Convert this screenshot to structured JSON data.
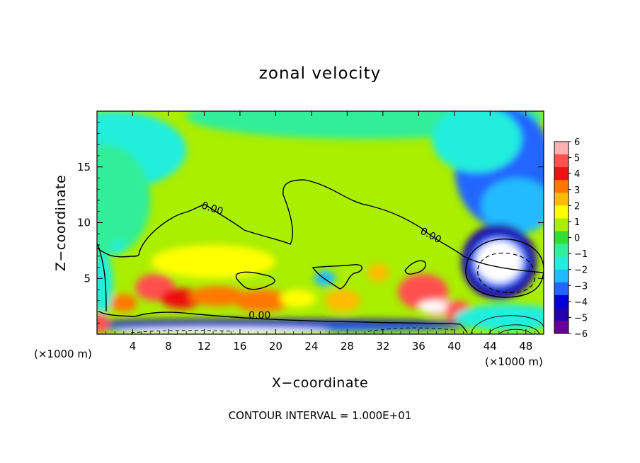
{
  "chart_data": {
    "type": "heatmap",
    "title": "zonal velocity",
    "xlabel": "X−coordinate",
    "ylabel": "Z−coordinate",
    "x_unit": "(×1000 m)",
    "z_unit": "(×1000 m)",
    "xlim": [
      0,
      50
    ],
    "ylim": [
      0,
      20
    ],
    "x_ticks": [
      4,
      8,
      12,
      16,
      20,
      24,
      28,
      32,
      36,
      40,
      44,
      48
    ],
    "y_ticks": [
      5,
      10,
      15
    ],
    "colorbar": {
      "ticks": [
        6,
        5,
        4,
        3,
        2,
        1,
        0,
        -1,
        -2,
        -3,
        -4,
        -5,
        -6
      ],
      "tick_labels": [
        "6",
        "5",
        "4",
        "3",
        "2",
        "1",
        "0",
        "−1",
        "−2",
        "−3",
        "−4",
        "−5",
        "−6"
      ],
      "colors": [
        "#ffb0b0",
        "#ff5050",
        "#ee1111",
        "#ff7700",
        "#ffbb00",
        "#ffff00",
        "#aaee00",
        "#33dd33",
        "#33ee99",
        "#22eedd",
        "#22bbff",
        "#2266ff",
        "#0000dd",
        "#2200aa",
        "#660099"
      ]
    },
    "contour_labels": [
      {
        "text": "0.00",
        "x": 12.8,
        "z": 11.0
      },
      {
        "text": "0.00",
        "x": 37.2,
        "z": 8.6
      },
      {
        "text": "0.00",
        "x": 18.2,
        "z": 1.4
      }
    ],
    "background_value": 0.5,
    "blobs": [
      {
        "x": 2,
        "z": 16.5,
        "rx": 8,
        "rz": 3.5,
        "v": -1.5
      },
      {
        "x": 1,
        "z": 12,
        "rx": 5,
        "rz": 5,
        "v": -1.0
      },
      {
        "x": 30,
        "z": 19.5,
        "rx": 20,
        "rz": 2,
        "v": -0.6
      },
      {
        "x": 45.5,
        "z": 15,
        "rx": 5.5,
        "rz": 5.5,
        "v": -2.8
      },
      {
        "x": 47,
        "z": 11.5,
        "rx": 4,
        "rz": 2.5,
        "v": -2.2
      },
      {
        "x": 42.5,
        "z": 17.5,
        "rx": 5,
        "rz": 3,
        "v": -1.6
      },
      {
        "x": 45,
        "z": 6.5,
        "rx": 4.2,
        "rz": 3.4,
        "v": -4.6
      },
      {
        "x": 45,
        "z": 6.5,
        "rx": 3.2,
        "rz": 2.4,
        "v": -3.0
      },
      {
        "x": 6.5,
        "z": 4.2,
        "rx": 2.2,
        "rz": 1.2,
        "v": 4.4
      },
      {
        "x": 9.5,
        "z": 3.2,
        "rx": 2.4,
        "rz": 0.9,
        "v": 3.8
      },
      {
        "x": 13.5,
        "z": 3.4,
        "rx": 3.2,
        "rz": 0.9,
        "v": 3.2
      },
      {
        "x": 18.5,
        "z": 3.0,
        "rx": 3.2,
        "rz": 1.0,
        "v": 3.4
      },
      {
        "x": 27.5,
        "z": 3.0,
        "rx": 2.0,
        "rz": 1.0,
        "v": 2.8
      },
      {
        "x": 31.5,
        "z": 5.5,
        "rx": 1.2,
        "rz": 0.8,
        "v": 2.5
      },
      {
        "x": 36.5,
        "z": 3.8,
        "rx": 2.8,
        "rz": 1.6,
        "v": 4.6
      },
      {
        "x": 38.5,
        "z": 2.4,
        "rx": 2.2,
        "rz": 0.8,
        "v": 5.2
      },
      {
        "x": 40.5,
        "z": 2.0,
        "rx": 1.4,
        "rz": 1.0,
        "v": 5.0
      },
      {
        "x": 3,
        "z": 2.8,
        "rx": 1.5,
        "rz": 0.8,
        "v": 3.0
      },
      {
        "x": 22.5,
        "z": 3.2,
        "rx": 2.0,
        "rz": 0.8,
        "v": 2.0
      },
      {
        "x": 25.5,
        "z": 5.0,
        "rx": 1.2,
        "rz": 0.7,
        "v": -2.0
      },
      {
        "x": 13,
        "z": 6.5,
        "rx": 7,
        "rz": 1.5,
        "v": 1.3
      },
      {
        "x": 0.6,
        "z": 4.5,
        "rx": 1.2,
        "rz": 2.8,
        "v": -1.6
      },
      {
        "x": 2.4,
        "z": 7.8,
        "rx": 0.8,
        "rz": 0.6,
        "v": -1.8
      },
      {
        "x": 20,
        "z": 1.0,
        "rx": 23,
        "rz": 0.35,
        "v": -4.6
      },
      {
        "x": 20,
        "z": 0.55,
        "rx": 22,
        "rz": 0.3,
        "v": -2.8
      },
      {
        "x": 46,
        "z": 1.5,
        "rx": 6,
        "rz": 1.2,
        "v": -1.2
      },
      {
        "x": 0.4,
        "z": 1.0,
        "rx": 0.9,
        "rz": 0.9,
        "v": 4.5
      }
    ],
    "white_regions": [
      {
        "x": 45,
        "z": 6.5,
        "rx": 2.6,
        "rz": 1.9
      },
      {
        "x": 37.5,
        "z": 2.5,
        "rx": 1.6,
        "rz": 0.5
      },
      {
        "x": 14,
        "z": 0.25,
        "rx": 12,
        "rz": 0.3
      }
    ]
  },
  "footer": "CONTOUR INTERVAL = 1.000E+01"
}
